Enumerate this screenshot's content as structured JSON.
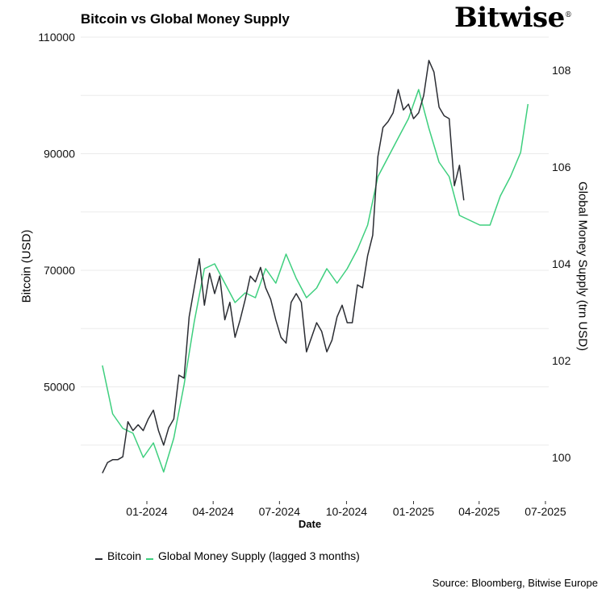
{
  "chart_data": {
    "type": "line",
    "title": "Bitcoin vs Global Money Supply",
    "xlabel": "Date",
    "ylabel_left": "Bitcoin (USD)",
    "ylabel_right": "Global Money Supply (trn USD)",
    "x_ticks": [
      "01-2024",
      "04-2024",
      "07-2024",
      "10-2024",
      "01-2025",
      "04-2025",
      "07-2025"
    ],
    "x_tick_dates": [
      "2024-01-01",
      "2024-04-01",
      "2024-07-01",
      "2024-10-01",
      "2025-01-01",
      "2025-04-01",
      "2025-07-01"
    ],
    "y_left_ticks": [
      "50000",
      "70000",
      "90000",
      "110000"
    ],
    "y_left_range": [
      36000,
      110000
    ],
    "y_right_ticks": [
      "100",
      "102",
      "104",
      "106",
      "108"
    ],
    "y_right_range": [
      99.4,
      108.4
    ],
    "grid": true,
    "legend_position": "bottom",
    "colors": {
      "bitcoin": "#2b2d33",
      "money_supply": "#3ecf7e"
    },
    "series": [
      {
        "name": "Bitcoin",
        "axis": "left",
        "x": [
          "2023-11-01",
          "2023-11-08",
          "2023-11-15",
          "2023-11-22",
          "2023-11-29",
          "2023-12-06",
          "2023-12-13",
          "2023-12-20",
          "2023-12-27",
          "2024-01-03",
          "2024-01-10",
          "2024-01-17",
          "2024-01-24",
          "2024-01-31",
          "2024-02-07",
          "2024-02-14",
          "2024-02-21",
          "2024-02-28",
          "2024-03-06",
          "2024-03-13",
          "2024-03-20",
          "2024-03-27",
          "2024-04-03",
          "2024-04-10",
          "2024-04-17",
          "2024-04-24",
          "2024-05-01",
          "2024-05-08",
          "2024-05-15",
          "2024-05-22",
          "2024-05-29",
          "2024-06-05",
          "2024-06-12",
          "2024-06-19",
          "2024-06-26",
          "2024-07-03",
          "2024-07-10",
          "2024-07-17",
          "2024-07-24",
          "2024-07-31",
          "2024-08-07",
          "2024-08-14",
          "2024-08-21",
          "2024-08-28",
          "2024-09-04",
          "2024-09-11",
          "2024-09-18",
          "2024-09-25",
          "2024-10-02",
          "2024-10-09",
          "2024-10-16",
          "2024-10-23",
          "2024-10-30",
          "2024-11-06",
          "2024-11-13",
          "2024-11-20",
          "2024-11-27",
          "2024-12-04",
          "2024-12-11",
          "2024-12-18",
          "2024-12-25",
          "2025-01-01",
          "2025-01-08",
          "2025-01-15",
          "2025-01-22",
          "2025-01-29",
          "2025-02-05",
          "2025-02-12",
          "2025-02-19",
          "2025-02-26",
          "2025-03-05",
          "2025-03-11"
        ],
        "values": [
          35200,
          37000,
          37500,
          37500,
          38000,
          44000,
          42500,
          43500,
          42500,
          44500,
          46000,
          42500,
          40000,
          43000,
          44500,
          52000,
          51500,
          62000,
          67000,
          72000,
          64000,
          69500,
          66000,
          69000,
          61500,
          64500,
          58500,
          61500,
          65000,
          69000,
          68000,
          70500,
          67000,
          65000,
          61500,
          58500,
          57500,
          64500,
          66000,
          64500,
          56000,
          58500,
          61000,
          59500,
          56000,
          58000,
          62000,
          64000,
          61000,
          61000,
          67500,
          67000,
          72500,
          76000,
          89500,
          94500,
          95500,
          97000,
          101000,
          97500,
          98500,
          96000,
          97000,
          100000,
          106000,
          104000,
          98000,
          96500,
          96000,
          84500,
          88000,
          82000
        ]
      },
      {
        "name": "Global Money Supply (lagged 3 months)",
        "axis": "right",
        "x": [
          "2023-11-01",
          "2023-11-15",
          "2023-11-29",
          "2023-12-13",
          "2023-12-27",
          "2024-01-10",
          "2024-01-24",
          "2024-02-07",
          "2024-02-21",
          "2024-03-06",
          "2024-03-20",
          "2024-04-03",
          "2024-04-17",
          "2024-05-01",
          "2024-05-15",
          "2024-05-29",
          "2024-06-12",
          "2024-06-26",
          "2024-07-10",
          "2024-07-24",
          "2024-08-07",
          "2024-08-21",
          "2024-09-04",
          "2024-09-18",
          "2024-10-02",
          "2024-10-16",
          "2024-10-30",
          "2024-11-13",
          "2024-11-27",
          "2024-12-11",
          "2024-12-25",
          "2025-01-08",
          "2025-01-22",
          "2025-02-05",
          "2025-02-19",
          "2025-03-05",
          "2025-03-19",
          "2025-04-02",
          "2025-04-16",
          "2025-04-30",
          "2025-05-14",
          "2025-05-28",
          "2025-06-07"
        ],
        "values": [
          101.9,
          100.9,
          100.6,
          100.5,
          100.0,
          100.3,
          99.7,
          100.4,
          101.5,
          102.8,
          103.9,
          104.0,
          103.6,
          103.2,
          103.4,
          103.3,
          103.9,
          103.6,
          104.2,
          103.7,
          103.3,
          103.5,
          103.9,
          103.6,
          103.9,
          104.3,
          104.8,
          105.8,
          106.2,
          106.6,
          107.0,
          107.6,
          106.8,
          106.1,
          105.8,
          105.0,
          104.9,
          104.8,
          104.8,
          105.4,
          105.8,
          106.3,
          107.3
        ]
      }
    ]
  },
  "header": {
    "title": "Bitcoin vs Global Money Supply",
    "logo_text": "Bitwise"
  },
  "legend": {
    "bitcoin": "Bitcoin",
    "money_supply": "Global Money Supply (lagged 3 months)"
  },
  "footer": {
    "source": "Source: Bloomberg, Bitwise Europe"
  }
}
